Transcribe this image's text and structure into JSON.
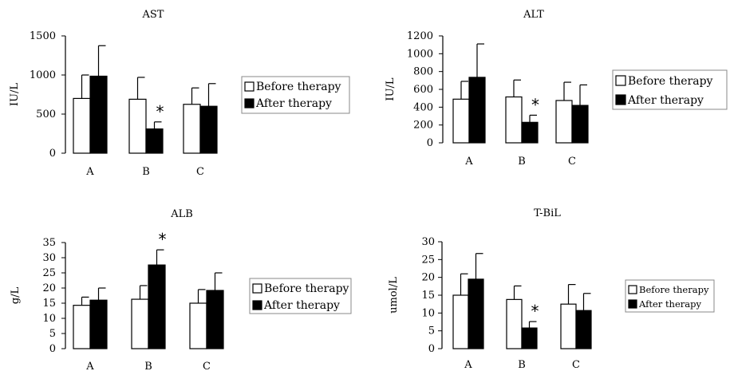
{
  "colors": {
    "before": "#ffffff",
    "after": "#000000",
    "stroke": "#000000"
  },
  "chart_data": [
    {
      "type": "bar",
      "title": "AST",
      "ylabel": "IU/L",
      "ylim": [
        0,
        1500
      ],
      "yticks": [
        "0",
        "500",
        "1000",
        "1500"
      ],
      "categories": [
        "A",
        "B",
        "C"
      ],
      "series": [
        {
          "name": "Before therapy",
          "values": [
            700,
            690,
            625
          ],
          "errors": [
            300,
            280,
            210
          ]
        },
        {
          "name": "After therapy",
          "values": [
            985,
            310,
            600
          ],
          "errors": [
            390,
            90,
            290
          ]
        }
      ],
      "significance": [
        "",
        "*",
        ""
      ],
      "legend": "right"
    },
    {
      "type": "bar",
      "title": "ALT",
      "ylabel": "IU/L",
      "ylim": [
        0,
        1200
      ],
      "yticks": [
        "0",
        "200",
        "400",
        "600",
        "800",
        "1000",
        "1200"
      ],
      "categories": [
        "A",
        "B",
        "C"
      ],
      "series": [
        {
          "name": "Before therapy",
          "values": [
            490,
            515,
            475
          ],
          "errors": [
            200,
            190,
            205
          ]
        },
        {
          "name": "After therapy",
          "values": [
            735,
            230,
            420
          ],
          "errors": [
            375,
            80,
            230
          ]
        }
      ],
      "significance": [
        "",
        "*",
        ""
      ],
      "legend": "right"
    },
    {
      "type": "bar",
      "title": "ALB",
      "ylabel": "g/L",
      "ylim": [
        0,
        35
      ],
      "yticks": [
        "0",
        "5",
        "10",
        "15",
        "20",
        "25",
        "30",
        "35"
      ],
      "categories": [
        "A",
        "B",
        "C"
      ],
      "series": [
        {
          "name": "Before therapy",
          "values": [
            14.3,
            16.3,
            15
          ],
          "errors": [
            2.7,
            4.5,
            4.5
          ]
        },
        {
          "name": "After therapy",
          "values": [
            16,
            27.6,
            19.2
          ],
          "errors": [
            4,
            5,
            5.8
          ]
        }
      ],
      "significance": [
        "",
        "*",
        ""
      ],
      "legend": "right"
    },
    {
      "type": "bar",
      "title": "T-BiL",
      "ylabel": "umol/L",
      "ylim": [
        0,
        30
      ],
      "yticks": [
        "0",
        "5",
        "10",
        "15",
        "20",
        "25",
        "30"
      ],
      "categories": [
        "A",
        "B",
        "C"
      ],
      "series": [
        {
          "name": "Before therapy",
          "values": [
            15,
            13.8,
            12.5
          ],
          "errors": [
            6,
            3.8,
            5.5
          ]
        },
        {
          "name": "After therapy",
          "values": [
            19.5,
            5.8,
            10.7
          ],
          "errors": [
            7.2,
            1.8,
            4.8
          ]
        }
      ],
      "significance": [
        "",
        "*",
        ""
      ],
      "legend": "right"
    }
  ]
}
